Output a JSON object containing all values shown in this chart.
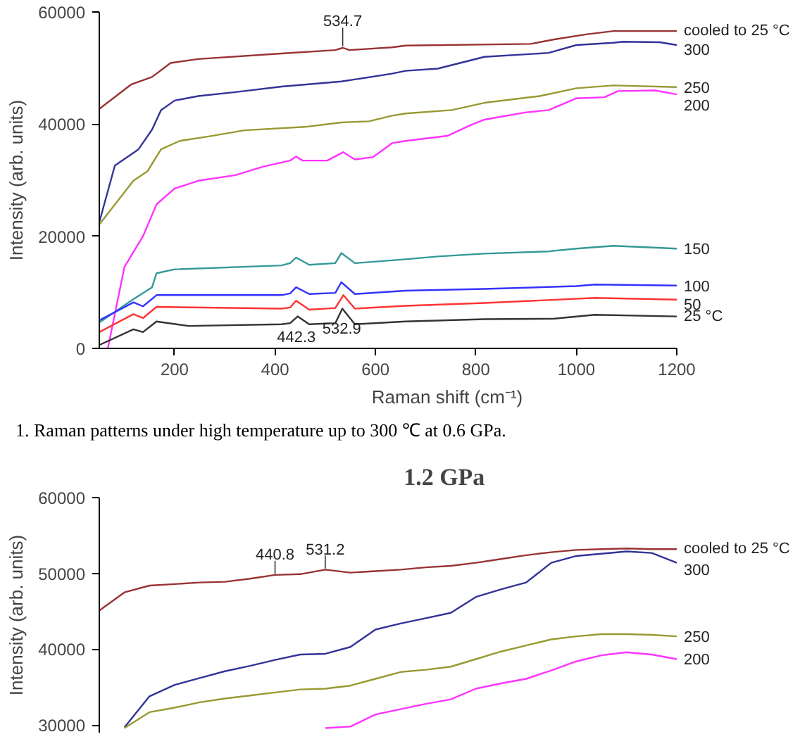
{
  "chart_data": [
    {
      "type": "line",
      "xlabel": "Raman shift (cm⁻¹)",
      "ylabel": "Intensity (arb. units)",
      "xlim": [
        50,
        1200
      ],
      "ylim": [
        0,
        60000
      ],
      "xticks": [
        200,
        400,
        600,
        800,
        1000,
        1200
      ],
      "yticks": [
        0,
        20000,
        40000,
        60000
      ],
      "grid": false,
      "line_style": "solid",
      "series": [
        {
          "name": "cooled to 25 °C",
          "color": "#993333",
          "x": [
            50,
            114,
            155,
            192,
            247,
            413,
            520,
            534.7,
            548,
            633,
            660,
            909,
            956,
            1019,
            1074,
            1200
          ],
          "values": [
            42700,
            47100,
            48400,
            50900,
            51600,
            52600,
            53200,
            53600,
            53200,
            53700,
            54000,
            54300,
            55100,
            56000,
            56600,
            56600
          ]
        },
        {
          "name": "300",
          "color": "#333399",
          "x": [
            50,
            81,
            128,
            155,
            173,
            200,
            247,
            321,
            413,
            532,
            633,
            660,
            724,
            817,
            945,
            1000,
            1074,
            1093,
            1166,
            1200
          ],
          "values": [
            22500,
            32600,
            35500,
            39000,
            42500,
            44200,
            45000,
            45700,
            46700,
            47600,
            49000,
            49500,
            49900,
            52000,
            52700,
            54100,
            54500,
            54700,
            54600,
            54100
          ]
        },
        {
          "name": "250",
          "color": "#999933",
          "x": [
            50,
            118,
            146,
            173,
            210,
            274,
            339,
            459,
            532,
            587,
            633,
            660,
            752,
            817,
            927,
            1000,
            1074,
            1200
          ],
          "values": [
            22100,
            29900,
            31600,
            35500,
            37000,
            37900,
            38900,
            39500,
            40300,
            40500,
            41500,
            41900,
            42500,
            43800,
            45000,
            46400,
            46900,
            46600
          ]
        },
        {
          "name": "200",
          "color": "#ff33ff",
          "x": [
            67,
            100,
            137,
            164,
            200,
            247,
            321,
            376,
            430,
            442,
            455,
            504,
            536,
            559,
            595,
            633,
            660,
            743,
            789,
            817,
            900,
            945,
            1000,
            1056,
            1083,
            1157,
            1200
          ],
          "values": [
            0,
            14500,
            20000,
            25700,
            28500,
            29900,
            30900,
            32400,
            33500,
            34200,
            33500,
            33500,
            35000,
            33700,
            34100,
            36600,
            37000,
            37900,
            39800,
            40800,
            42100,
            42500,
            44600,
            44800,
            45900,
            46000,
            45300
          ]
        },
        {
          "name": "150",
          "color": "#339999",
          "x": [
            50,
            118,
            155,
            164,
            200,
            413,
            430,
            442,
            468,
            520,
            532,
            559,
            660,
            724,
            817,
            945,
            1000,
            1074,
            1200
          ],
          "values": [
            4600,
            8800,
            10900,
            13400,
            14100,
            14800,
            15200,
            16200,
            14900,
            15200,
            17000,
            15200,
            15900,
            16400,
            16900,
            17300,
            17800,
            18300,
            17800
          ]
        },
        {
          "name": "100",
          "color": "#3333ff",
          "x": [
            50,
            118,
            137,
            164,
            413,
            430,
            442,
            468,
            520,
            532,
            559,
            660,
            817,
            1000,
            1037,
            1200
          ],
          "values": [
            5000,
            8200,
            7500,
            9500,
            9500,
            9800,
            10900,
            9700,
            9900,
            11800,
            9700,
            10300,
            10600,
            11100,
            11400,
            11200
          ]
        },
        {
          "name": "50",
          "color": "#ff3333",
          "x": [
            50,
            118,
            137,
            164,
            413,
            430,
            442,
            468,
            520,
            536,
            559,
            660,
            817,
            1037,
            1200
          ],
          "values": [
            2900,
            6100,
            5400,
            7400,
            7100,
            7300,
            8500,
            6900,
            7200,
            9500,
            7100,
            7600,
            8100,
            9000,
            8700
          ]
        },
        {
          "name": "25 °C",
          "color": "#333333",
          "x": [
            50,
            118,
            137,
            164,
            228,
            413,
            430,
            445,
            468,
            520,
            534,
            559,
            660,
            817,
            956,
            1037,
            1200
          ],
          "values": [
            600,
            3400,
            2900,
            4800,
            4000,
            4300,
            4500,
            5700,
            4300,
            4500,
            7100,
            4300,
            4800,
            5200,
            5300,
            6000,
            5700
          ]
        }
      ],
      "annotations": [
        {
          "text": "534.7",
          "x": 534.7,
          "y": 53600
        },
        {
          "text": "442.3",
          "x": 442.3,
          "y": 5700
        },
        {
          "text": "532.9",
          "x": 532.9,
          "y": 7100
        },
        "1. Raman patterns under high temperature up to 300 ℃ at 0.6 GPa."
      ]
    },
    {
      "type": "line",
      "title": "1.2  GPa",
      "ylabel": "Intensity (arb. units)",
      "categories": [
        null,
        null,
        null,
        null,
        null,
        null,
        null,
        null,
        null,
        null,
        null,
        null,
        null,
        null,
        null,
        null,
        null,
        null,
        null,
        null,
        null,
        null,
        null,
        null
      ],
      "ylim": [
        29000,
        60000
      ],
      "yticks": [
        30000,
        40000,
        50000,
        60000
      ],
      "tick_labels": "y",
      "grid": false,
      "line_style": "solid",
      "series": [
        {
          "name": "cooled to 25 °C",
          "color": "#993333",
          "values": [
            45100,
            47500,
            48400,
            48600,
            48800,
            48900,
            49300,
            49800,
            49900,
            50500,
            50100,
            50300,
            50500,
            50800,
            51000,
            51400,
            51900,
            52400,
            52800,
            53100,
            53200,
            53300,
            53200,
            53200
          ]
        },
        {
          "name": "300",
          "color": "#333399",
          "values": [
            null,
            29700,
            33800,
            35300,
            36200,
            37100,
            37800,
            38600,
            39300,
            39400,
            40300,
            42600,
            43400,
            44100,
            44800,
            46900,
            47900,
            48800,
            51400,
            52300,
            52600,
            52900,
            52700,
            51400
          ]
        },
        {
          "name": "250",
          "color": "#999933",
          "values": [
            null,
            29600,
            31700,
            32300,
            33000,
            33500,
            33900,
            34300,
            34700,
            34800,
            35200,
            36100,
            37000,
            37300,
            37700,
            38700,
            39700,
            40500,
            41300,
            41700,
            42000,
            42000,
            41900,
            41700
          ]
        },
        {
          "name": "200",
          "color": "#ff33ff",
          "values": [
            null,
            null,
            null,
            null,
            null,
            null,
            null,
            null,
            null,
            29600,
            29800,
            31400,
            32100,
            32800,
            33400,
            34800,
            35500,
            36100,
            37200,
            38400,
            39200,
            39600,
            39300,
            38700
          ]
        }
      ],
      "annotations": [
        {
          "text": "440.8",
          "y": 49800
        },
        {
          "text": "531.2",
          "y": 50500
        }
      ]
    }
  ]
}
